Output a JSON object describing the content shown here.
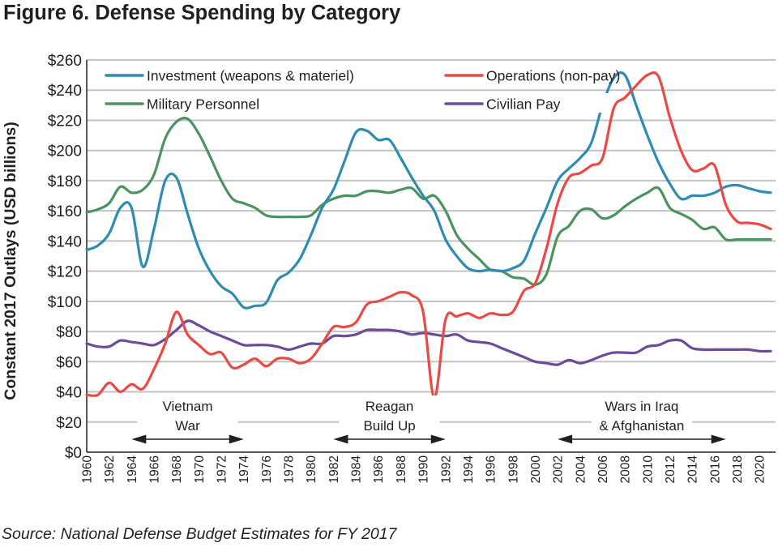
{
  "title": "Figure 6. Defense Spending by Category",
  "source": {
    "label": "Source",
    "text": "National Defense Budget Estimates for FY 2017"
  },
  "chart_data": {
    "type": "line",
    "title": "Figure 6. Defense Spending by Category",
    "xlabel": "",
    "ylabel": "Constant 2017 Outlays (USD billions)",
    "xlim": [
      1960,
      2021
    ],
    "ylim": [
      0,
      260
    ],
    "yticks": [
      0,
      20,
      40,
      60,
      80,
      100,
      120,
      140,
      160,
      180,
      200,
      220,
      240,
      260
    ],
    "ytick_labels": [
      "$0",
      "$20",
      "$40",
      "$60",
      "$80",
      "$100",
      "$120",
      "$140",
      "$160",
      "$180",
      "$200",
      "$220",
      "$240",
      "$260"
    ],
    "xticks": [
      1960,
      1962,
      1964,
      1966,
      1968,
      1970,
      1972,
      1974,
      1976,
      1978,
      1980,
      1982,
      1984,
      1986,
      1988,
      1990,
      1992,
      1994,
      1996,
      1998,
      2000,
      2002,
      2004,
      2006,
      2008,
      2010,
      2012,
      2014,
      2016,
      2018,
      2020
    ],
    "xtick_labels": [
      "1960",
      "1962",
      "1964",
      "1966",
      "1968",
      "1970",
      "1972",
      "1974",
      "1976",
      "1978",
      "1980",
      "1982",
      "1984",
      "1986",
      "1988",
      "1990",
      "1992",
      "1994",
      "1996",
      "1998",
      "2000",
      "2002",
      "2004",
      "2006",
      "2008",
      "2010",
      "2012",
      "2014",
      "2016",
      "2018",
      "2020"
    ],
    "grid": "horizontal",
    "legend_position": "top",
    "x": [
      1960,
      1961,
      1962,
      1963,
      1964,
      1965,
      1966,
      1967,
      1968,
      1969,
      1970,
      1971,
      1972,
      1973,
      1974,
      1975,
      1976,
      1977,
      1978,
      1979,
      1980,
      1981,
      1982,
      1983,
      1984,
      1985,
      1986,
      1987,
      1988,
      1989,
      1990,
      1991,
      1992,
      1993,
      1994,
      1995,
      1996,
      1997,
      1998,
      1999,
      2000,
      2001,
      2002,
      2003,
      2004,
      2005,
      2006,
      2007,
      2008,
      2009,
      2010,
      2011,
      2012,
      2013,
      2014,
      2015,
      2016,
      2017,
      2018,
      2019,
      2020,
      2021
    ],
    "series": [
      {
        "name": "Investment (weapons & materiel)",
        "color": "#2e8cb2",
        "values": [
          134,
          137,
          145,
          162,
          162,
          123,
          148,
          180,
          182,
          158,
          135,
          120,
          110,
          105,
          96,
          97,
          99,
          114,
          119,
          128,
          144,
          162,
          174,
          193,
          212,
          213,
          207,
          207,
          195,
          182,
          170,
          160,
          141,
          130,
          122,
          120,
          121,
          120,
          122,
          127,
          145,
          162,
          180,
          188,
          195,
          205,
          230,
          248,
          250,
          230,
          210,
          192,
          178,
          168,
          170,
          170,
          172,
          176,
          177,
          175,
          173,
          172
        ]
      },
      {
        "name": "Operations (non-pay)",
        "color": "#ea4a45",
        "values": [
          38,
          38,
          46,
          40,
          45,
          42,
          55,
          72,
          93,
          78,
          71,
          65,
          66,
          56,
          58,
          62,
          57,
          62,
          62,
          59,
          62,
          72,
          83,
          83,
          86,
          98,
          100,
          103,
          106,
          104,
          93,
          36,
          88,
          90,
          92,
          89,
          92,
          91,
          93,
          107,
          112,
          135,
          165,
          182,
          185,
          190,
          195,
          228,
          235,
          243,
          250,
          249,
          222,
          200,
          187,
          188,
          190,
          164,
          153,
          152,
          151,
          148
        ]
      },
      {
        "name": "Military Personnel",
        "color": "#4b9460",
        "values": [
          159,
          161,
          165,
          176,
          172,
          174,
          184,
          208,
          219,
          221,
          211,
          196,
          180,
          168,
          165,
          162,
          157,
          156,
          156,
          156,
          157,
          164,
          168,
          170,
          170,
          173,
          173,
          172,
          174,
          175,
          168,
          170,
          160,
          144,
          135,
          128,
          121,
          120,
          116,
          115,
          111,
          118,
          143,
          150,
          160,
          161,
          155,
          157,
          163,
          168,
          172,
          175,
          162,
          158,
          154,
          148,
          149,
          141,
          141,
          141,
          141,
          141
        ]
      },
      {
        "name": "Civilian Pay",
        "color": "#6c4b9b",
        "values": [
          72,
          70,
          70,
          74,
          73,
          72,
          71,
          75,
          81,
          87,
          84,
          80,
          77,
          74,
          71,
          71,
          71,
          70,
          68,
          70,
          72,
          72,
          77,
          77,
          78,
          81,
          81,
          81,
          80,
          78,
          79,
          78,
          77,
          78,
          74,
          73,
          72,
          69,
          66,
          63,
          60,
          59,
          58,
          61,
          59,
          61,
          64,
          66,
          66,
          66,
          70,
          71,
          74,
          74,
          69,
          68,
          68,
          68,
          68,
          68,
          67,
          67
        ]
      }
    ],
    "annotations": [
      {
        "lines": [
          "Vietnam",
          "War"
        ],
        "x_start": 1964,
        "x_end": 1974
      },
      {
        "lines": [
          "Reagan",
          "Build Up"
        ],
        "x_start": 1982,
        "x_end": 1992
      },
      {
        "lines": [
          "Wars in Iraq",
          "& Afghanistan"
        ],
        "x_start": 2002,
        "x_end": 2017
      }
    ]
  }
}
